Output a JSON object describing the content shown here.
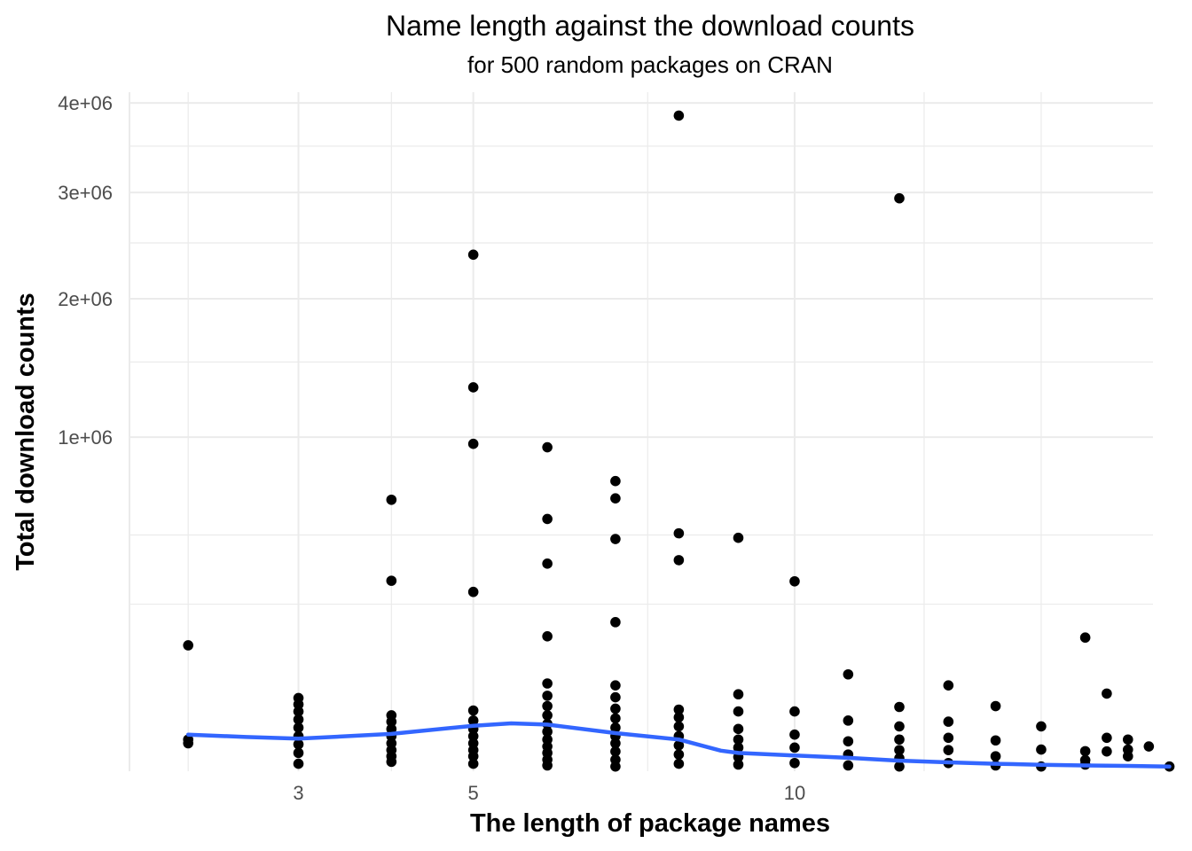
{
  "chart_data": {
    "type": "scatter",
    "title": "Name length against the download counts",
    "subtitle": "for 500 random packages on CRAN",
    "xlabel": "The length of package names",
    "ylabel": "Total download counts",
    "x_scale": "sqrt",
    "y_scale": "sqrt",
    "xlim": [
      1.55,
      17.6
    ],
    "ylim": [
      0,
      4130000
    ],
    "x_ticks": [
      {
        "value": 3,
        "label": "3"
      },
      {
        "value": 5,
        "label": "5"
      },
      {
        "value": 10,
        "label": "10"
      }
    ],
    "x_minor_breaks": [
      2,
      4,
      7.5,
      12.5,
      15
    ],
    "y_ticks": [
      {
        "value": 1000000,
        "label": "1e+06"
      },
      {
        "value": 2000000,
        "label": "2e+06"
      },
      {
        "value": 3000000,
        "label": "3e+06"
      },
      {
        "value": 4000000,
        "label": "4e+06"
      }
    ],
    "y_minor_breaks": [
      250000,
      500000,
      1500000,
      2500000,
      3500000
    ],
    "grid": true,
    "point_color": "#000000",
    "smooth_color": "#3366FF",
    "points": [
      {
        "x": 2,
        "y": 142000
      },
      {
        "x": 2,
        "y": 9000
      },
      {
        "x": 2,
        "y": 7000
      },
      {
        "x": 3,
        "y": 48000
      },
      {
        "x": 3,
        "y": 40000
      },
      {
        "x": 3,
        "y": 32000
      },
      {
        "x": 3,
        "y": 24000
      },
      {
        "x": 3,
        "y": 17000
      },
      {
        "x": 3,
        "y": 11000
      },
      {
        "x": 3,
        "y": 6500
      },
      {
        "x": 3,
        "y": 3000
      },
      {
        "x": 3,
        "y": 500
      },
      {
        "x": 4,
        "y": 660000
      },
      {
        "x": 4,
        "y": 325000
      },
      {
        "x": 4,
        "y": 28000
      },
      {
        "x": 4,
        "y": 22000
      },
      {
        "x": 4,
        "y": 16000
      },
      {
        "x": 4,
        "y": 11000
      },
      {
        "x": 4,
        "y": 7000
      },
      {
        "x": 4,
        "y": 4000
      },
      {
        "x": 4,
        "y": 2000
      },
      {
        "x": 4,
        "y": 800
      },
      {
        "x": 5,
        "y": 2390000
      },
      {
        "x": 5,
        "y": 1320000
      },
      {
        "x": 5,
        "y": 960000
      },
      {
        "x": 5,
        "y": 288000
      },
      {
        "x": 5,
        "y": 33000
      },
      {
        "x": 5,
        "y": 23000
      },
      {
        "x": 5,
        "y": 16000
      },
      {
        "x": 5,
        "y": 11000
      },
      {
        "x": 5,
        "y": 7000
      },
      {
        "x": 5,
        "y": 4000
      },
      {
        "x": 5,
        "y": 2000
      },
      {
        "x": 5,
        "y": 500
      },
      {
        "x": 6,
        "y": 940000
      },
      {
        "x": 6,
        "y": 570000
      },
      {
        "x": 6,
        "y": 386000
      },
      {
        "x": 6,
        "y": 163000
      },
      {
        "x": 6,
        "y": 69000
      },
      {
        "x": 6,
        "y": 51000
      },
      {
        "x": 6,
        "y": 38000
      },
      {
        "x": 6,
        "y": 28000
      },
      {
        "x": 6,
        "y": 20000
      },
      {
        "x": 6,
        "y": 14000
      },
      {
        "x": 6,
        "y": 9000
      },
      {
        "x": 6,
        "y": 5500
      },
      {
        "x": 6,
        "y": 3000
      },
      {
        "x": 6,
        "y": 1200
      },
      {
        "x": 6,
        "y": 300
      },
      {
        "x": 7,
        "y": 754000
      },
      {
        "x": 7,
        "y": 667000
      },
      {
        "x": 7,
        "y": 483000
      },
      {
        "x": 7,
        "y": 199000
      },
      {
        "x": 7,
        "y": 66000
      },
      {
        "x": 7,
        "y": 49000
      },
      {
        "x": 7,
        "y": 35000
      },
      {
        "x": 7,
        "y": 25000
      },
      {
        "x": 7,
        "y": 17000
      },
      {
        "x": 7,
        "y": 11000
      },
      {
        "x": 7,
        "y": 7000
      },
      {
        "x": 7,
        "y": 3500
      },
      {
        "x": 7,
        "y": 1200
      },
      {
        "x": 7,
        "y": 200
      },
      {
        "x": 8,
        "y": 3850000
      },
      {
        "x": 8,
        "y": 507000
      },
      {
        "x": 8,
        "y": 399000
      },
      {
        "x": 8,
        "y": 34000
      },
      {
        "x": 8,
        "y": 26000
      },
      {
        "x": 8,
        "y": 18000
      },
      {
        "x": 8,
        "y": 11000
      },
      {
        "x": 8,
        "y": 6000
      },
      {
        "x": 8,
        "y": 2500
      },
      {
        "x": 8,
        "y": 500
      },
      {
        "x": 9,
        "y": 488000
      },
      {
        "x": 9,
        "y": 53000
      },
      {
        "x": 9,
        "y": 32000
      },
      {
        "x": 9,
        "y": 16000
      },
      {
        "x": 9,
        "y": 9000
      },
      {
        "x": 9,
        "y": 5000
      },
      {
        "x": 9,
        "y": 1800
      },
      {
        "x": 9,
        "y": 400
      },
      {
        "x": 10,
        "y": 323000
      },
      {
        "x": 10,
        "y": 32000
      },
      {
        "x": 10,
        "y": 12000
      },
      {
        "x": 10,
        "y": 5000
      },
      {
        "x": 10,
        "y": 600
      },
      {
        "x": 11,
        "y": 84000
      },
      {
        "x": 11,
        "y": 23000
      },
      {
        "x": 11,
        "y": 8000
      },
      {
        "x": 11,
        "y": 2500
      },
      {
        "x": 11,
        "y": 300
      },
      {
        "x": 12,
        "y": 2940000
      },
      {
        "x": 12,
        "y": 37000
      },
      {
        "x": 12,
        "y": 18000
      },
      {
        "x": 12,
        "y": 9000
      },
      {
        "x": 12,
        "y": 4000
      },
      {
        "x": 12,
        "y": 1500
      },
      {
        "x": 12,
        "y": 200
      },
      {
        "x": 13,
        "y": 66000
      },
      {
        "x": 13,
        "y": 22000
      },
      {
        "x": 13,
        "y": 10000
      },
      {
        "x": 13,
        "y": 4000
      },
      {
        "x": 13,
        "y": 600
      },
      {
        "x": 14,
        "y": 38000
      },
      {
        "x": 14,
        "y": 8500
      },
      {
        "x": 14,
        "y": 2000
      },
      {
        "x": 14,
        "y": 300
      },
      {
        "x": 15,
        "y": 18000
      },
      {
        "x": 15,
        "y": 4200
      },
      {
        "x": 15,
        "y": 200
      },
      {
        "x": 16,
        "y": 160000
      },
      {
        "x": 16,
        "y": 3600
      },
      {
        "x": 16,
        "y": 1100
      },
      {
        "x": 16,
        "y": 400
      },
      {
        "x": 16.5,
        "y": 54000
      },
      {
        "x": 16.5,
        "y": 10000
      },
      {
        "x": 16.5,
        "y": 3500
      },
      {
        "x": 17,
        "y": 9000
      },
      {
        "x": 17,
        "y": 4200
      },
      {
        "x": 17,
        "y": 2000
      },
      {
        "x": 17.5,
        "y": 5500
      },
      {
        "x": 18,
        "y": 200
      }
    ],
    "smooth": [
      {
        "x": 2,
        "y": 12000
      },
      {
        "x": 2.5,
        "y": 10500
      },
      {
        "x": 3,
        "y": 9500
      },
      {
        "x": 4,
        "y": 12500
      },
      {
        "x": 5,
        "y": 18500
      },
      {
        "x": 5.5,
        "y": 20500
      },
      {
        "x": 6,
        "y": 19500
      },
      {
        "x": 7,
        "y": 13000
      },
      {
        "x": 8,
        "y": 9000
      },
      {
        "x": 8.7,
        "y": 3800
      },
      {
        "x": 9,
        "y": 3000
      },
      {
        "x": 10,
        "y": 2200
      },
      {
        "x": 11,
        "y": 1600
      },
      {
        "x": 12,
        "y": 1000
      },
      {
        "x": 13,
        "y": 700
      },
      {
        "x": 14,
        "y": 500
      },
      {
        "x": 15,
        "y": 380
      },
      {
        "x": 16,
        "y": 300
      },
      {
        "x": 17,
        "y": 250
      },
      {
        "x": 18,
        "y": 200
      }
    ]
  }
}
